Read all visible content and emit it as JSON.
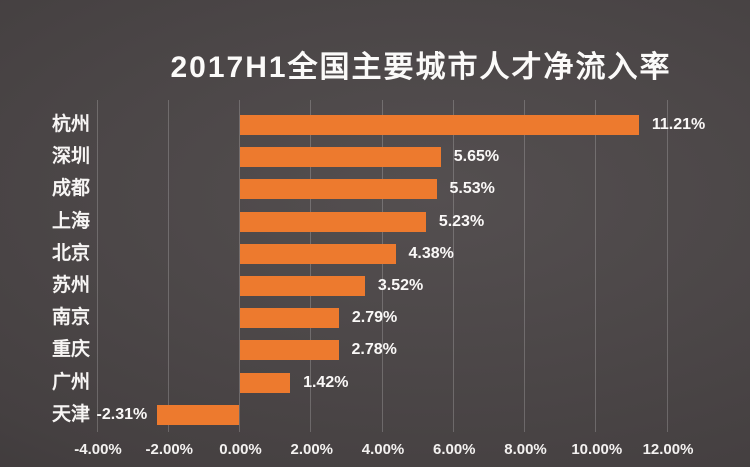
{
  "page": {
    "background_color": "#464142",
    "text_color": "#FAF8F7"
  },
  "chart_data": {
    "type": "bar",
    "orientation": "horizontal",
    "title": "2017H1全国主要城市人才净流入率",
    "categories": [
      "杭州",
      "深圳",
      "成都",
      "上海",
      "北京",
      "苏州",
      "南京",
      "重庆",
      "广州",
      "天津"
    ],
    "values": [
      11.21,
      5.65,
      5.53,
      5.23,
      4.38,
      3.52,
      2.79,
      2.78,
      1.42,
      -2.31
    ],
    "value_labels": [
      "11.21%",
      "5.65%",
      "5.53%",
      "5.23%",
      "4.38%",
      "3.52%",
      "2.79%",
      "2.78%",
      "1.42%",
      "-2.31%"
    ],
    "xlabel": "",
    "ylabel": "",
    "xlim": [
      -4,
      12
    ],
    "x_ticks": [
      -4,
      -2,
      0,
      2,
      4,
      6,
      8,
      10,
      12
    ],
    "x_tick_labels": [
      "-4.00%",
      "-2.00%",
      "0.00%",
      "2.00%",
      "4.00%",
      "6.00%",
      "8.00%",
      "10.00%",
      "12.00%"
    ],
    "grid": "vertical-only",
    "legend": "none",
    "bar_color": "#ED7A2E",
    "gridline_color": "rgba(255,255,255,0.20)"
  }
}
